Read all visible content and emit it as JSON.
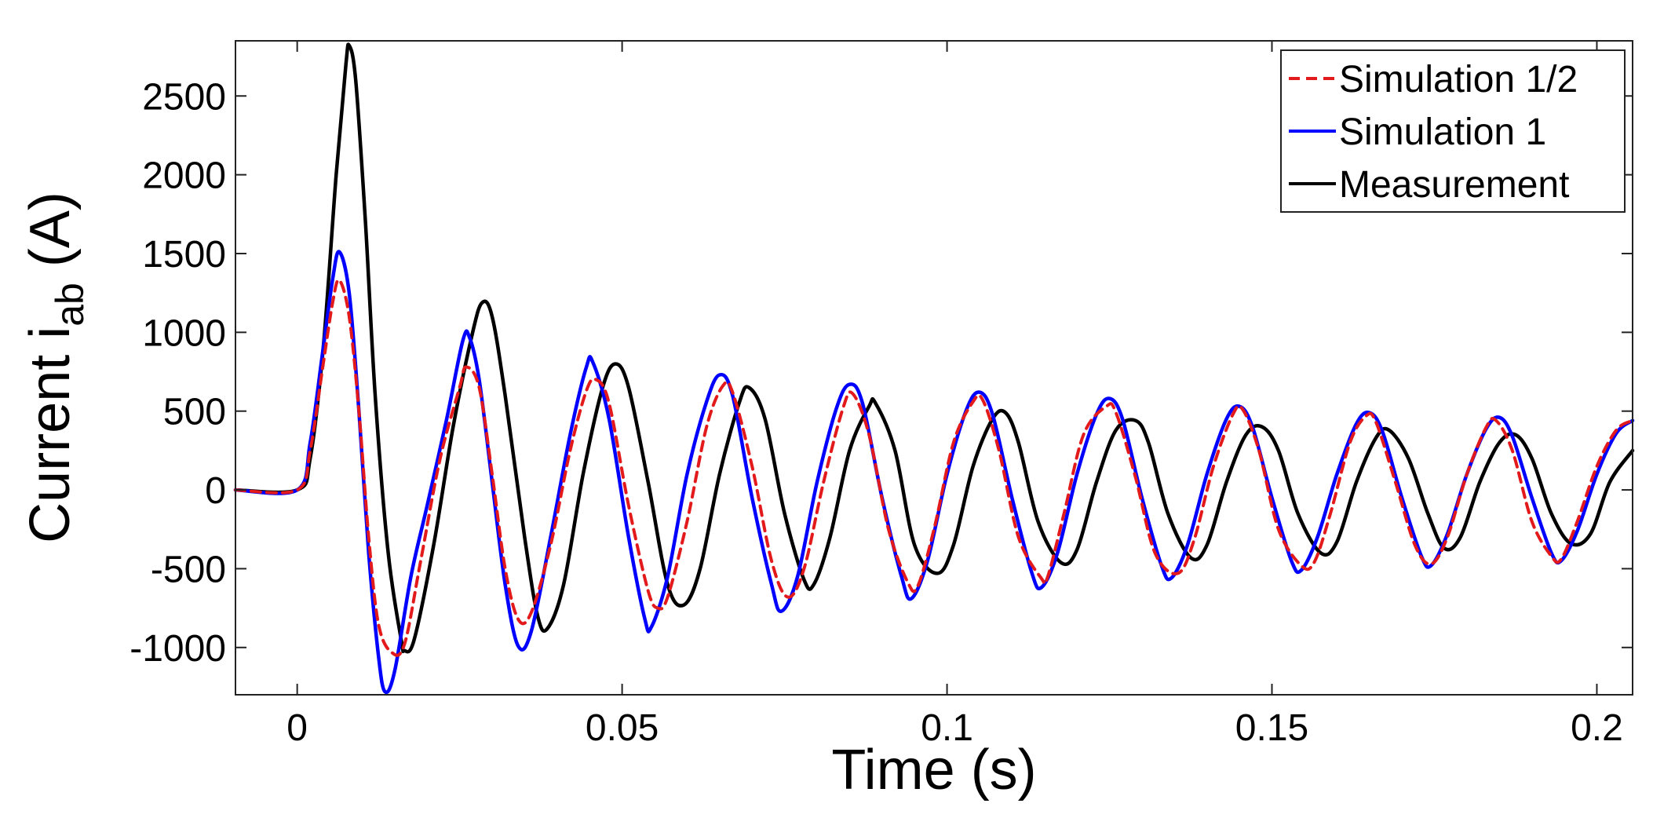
{
  "chart_data": {
    "type": "line",
    "xlabel": "Time (s)",
    "ylabel": {
      "prefix": "Current i",
      "subscript": "ab",
      "suffix": " (A)"
    },
    "xlim": [
      -0.0095,
      0.2055
    ],
    "ylim": [
      -1300,
      2850
    ],
    "x_ticks": [
      {
        "value": 0,
        "label": "0"
      },
      {
        "value": 0.05,
        "label": "0.05"
      },
      {
        "value": 0.1,
        "label": "0.1"
      },
      {
        "value": 0.15,
        "label": "0.15"
      },
      {
        "value": 0.2,
        "label": "0.2"
      }
    ],
    "y_ticks": [
      {
        "value": -1000,
        "label": "-1000"
      },
      {
        "value": -500,
        "label": "-500"
      },
      {
        "value": 0,
        "label": "0"
      },
      {
        "value": 500,
        "label": "500"
      },
      {
        "value": 1000,
        "label": "1000"
      },
      {
        "value": 1500,
        "label": "1500"
      },
      {
        "value": 2000,
        "label": "2000"
      },
      {
        "value": 2500,
        "label": "2500"
      }
    ],
    "grid": false,
    "legend_position": "top-right",
    "series": [
      {
        "name": "Simulation 1/2",
        "color": "#e31a1c",
        "style": "dashed",
        "points": [
          [
            -0.0095,
            0
          ],
          [
            0,
            0
          ],
          [
            0.002,
            250
          ],
          [
            0.004,
            800
          ],
          [
            0.0055,
            1200
          ],
          [
            0.0065,
            1330
          ],
          [
            0.008,
            1100
          ],
          [
            0.0095,
            500
          ],
          [
            0.011,
            -300
          ],
          [
            0.0125,
            -850
          ],
          [
            0.0145,
            -1030
          ],
          [
            0.0165,
            -980
          ],
          [
            0.019,
            -450
          ],
          [
            0.022,
            200
          ],
          [
            0.025,
            650
          ],
          [
            0.026,
            780
          ],
          [
            0.028,
            650
          ],
          [
            0.03,
            100
          ],
          [
            0.032,
            -500
          ],
          [
            0.034,
            -820
          ],
          [
            0.036,
            -780
          ],
          [
            0.039,
            -350
          ],
          [
            0.042,
            250
          ],
          [
            0.0445,
            630
          ],
          [
            0.046,
            700
          ],
          [
            0.048,
            550
          ],
          [
            0.051,
            -100
          ],
          [
            0.054,
            -640
          ],
          [
            0.0555,
            -750
          ],
          [
            0.057,
            -680
          ],
          [
            0.06,
            -200
          ],
          [
            0.063,
            400
          ],
          [
            0.0655,
            660
          ],
          [
            0.067,
            620
          ],
          [
            0.07,
            150
          ],
          [
            0.073,
            -450
          ],
          [
            0.0755,
            -680
          ],
          [
            0.078,
            -500
          ],
          [
            0.081,
            50
          ],
          [
            0.084,
            520
          ],
          [
            0.0855,
            610
          ],
          [
            0.088,
            350
          ],
          [
            0.091,
            -250
          ],
          [
            0.094,
            -590
          ],
          [
            0.0955,
            -610
          ],
          [
            0.098,
            -250
          ],
          [
            0.101,
            300
          ],
          [
            0.104,
            560
          ],
          [
            0.1055,
            570
          ],
          [
            0.108,
            250
          ],
          [
            0.111,
            -300
          ],
          [
            0.1145,
            -560
          ],
          [
            0.1155,
            -550
          ],
          [
            0.118,
            -150
          ],
          [
            0.121,
            350
          ],
          [
            0.1245,
            530
          ],
          [
            0.126,
            490
          ],
          [
            0.129,
            80
          ],
          [
            0.132,
            -400
          ],
          [
            0.1355,
            -530
          ],
          [
            0.138,
            -320
          ],
          [
            0.141,
            150
          ],
          [
            0.144,
            480
          ],
          [
            0.1455,
            510
          ],
          [
            0.148,
            250
          ],
          [
            0.151,
            -250
          ],
          [
            0.1545,
            -480
          ],
          [
            0.1565,
            -460
          ],
          [
            0.159,
            -150
          ],
          [
            0.162,
            300
          ],
          [
            0.1645,
            470
          ],
          [
            0.166,
            430
          ],
          [
            0.169,
            50
          ],
          [
            0.172,
            -350
          ],
          [
            0.1745,
            -470
          ],
          [
            0.177,
            -300
          ],
          [
            0.18,
            100
          ],
          [
            0.183,
            400
          ],
          [
            0.1845,
            440
          ],
          [
            0.187,
            250
          ],
          [
            0.19,
            -200
          ],
          [
            0.193,
            -420
          ],
          [
            0.1945,
            -440
          ],
          [
            0.197,
            -200
          ],
          [
            0.2,
            150
          ],
          [
            0.203,
            380
          ],
          [
            0.2055,
            440
          ]
        ]
      },
      {
        "name": "Simulation 1",
        "color": "#0000ff",
        "style": "solid",
        "points": [
          [
            -0.0095,
            0
          ],
          [
            0,
            0
          ],
          [
            0.002,
            300
          ],
          [
            0.004,
            900
          ],
          [
            0.0055,
            1350
          ],
          [
            0.0065,
            1510
          ],
          [
            0.008,
            1250
          ],
          [
            0.0095,
            500
          ],
          [
            0.011,
            -400
          ],
          [
            0.0125,
            -1050
          ],
          [
            0.0135,
            -1280
          ],
          [
            0.015,
            -1150
          ],
          [
            0.0175,
            -550
          ],
          [
            0.02,
            -100
          ],
          [
            0.023,
            450
          ],
          [
            0.0255,
            950
          ],
          [
            0.0265,
            970
          ],
          [
            0.028,
            700
          ],
          [
            0.03,
            50
          ],
          [
            0.032,
            -600
          ],
          [
            0.034,
            -990
          ],
          [
            0.036,
            -900
          ],
          [
            0.039,
            -300
          ],
          [
            0.042,
            350
          ],
          [
            0.0445,
            780
          ],
          [
            0.0455,
            810
          ],
          [
            0.048,
            450
          ],
          [
            0.051,
            -300
          ],
          [
            0.0535,
            -820
          ],
          [
            0.0545,
            -870
          ],
          [
            0.057,
            -550
          ],
          [
            0.06,
            100
          ],
          [
            0.063,
            560
          ],
          [
            0.065,
            730
          ],
          [
            0.067,
            600
          ],
          [
            0.07,
            -50
          ],
          [
            0.073,
            -600
          ],
          [
            0.0745,
            -770
          ],
          [
            0.077,
            -550
          ],
          [
            0.08,
            50
          ],
          [
            0.083,
            520
          ],
          [
            0.085,
            670
          ],
          [
            0.087,
            550
          ],
          [
            0.09,
            -50
          ],
          [
            0.093,
            -550
          ],
          [
            0.0945,
            -690
          ],
          [
            0.097,
            -450
          ],
          [
            0.1,
            100
          ],
          [
            0.103,
            510
          ],
          [
            0.105,
            620
          ],
          [
            0.107,
            480
          ],
          [
            0.11,
            -50
          ],
          [
            0.113,
            -520
          ],
          [
            0.1145,
            -620
          ],
          [
            0.117,
            -400
          ],
          [
            0.12,
            100
          ],
          [
            0.123,
            480
          ],
          [
            0.125,
            580
          ],
          [
            0.127,
            450
          ],
          [
            0.13,
            -50
          ],
          [
            0.133,
            -480
          ],
          [
            0.1345,
            -560
          ],
          [
            0.137,
            -350
          ],
          [
            0.14,
            100
          ],
          [
            0.143,
            450
          ],
          [
            0.145,
            530
          ],
          [
            0.147,
            400
          ],
          [
            0.15,
            -50
          ],
          [
            0.153,
            -450
          ],
          [
            0.1545,
            -510
          ],
          [
            0.157,
            -300
          ],
          [
            0.16,
            100
          ],
          [
            0.163,
            420
          ],
          [
            0.165,
            490
          ],
          [
            0.167,
            370
          ],
          [
            0.17,
            -50
          ],
          [
            0.173,
            -420
          ],
          [
            0.1745,
            -480
          ],
          [
            0.177,
            -280
          ],
          [
            0.18,
            100
          ],
          [
            0.183,
            390
          ],
          [
            0.185,
            460
          ],
          [
            0.187,
            340
          ],
          [
            0.19,
            -50
          ],
          [
            0.193,
            -400
          ],
          [
            0.1945,
            -450
          ],
          [
            0.197,
            -260
          ],
          [
            0.2,
            100
          ],
          [
            0.203,
            360
          ],
          [
            0.2055,
            440
          ]
        ]
      },
      {
        "name": "Measurement",
        "color": "#000000",
        "style": "solid",
        "points": [
          [
            -0.0095,
            0
          ],
          [
            0,
            0
          ],
          [
            0.002,
            200
          ],
          [
            0.004,
            900
          ],
          [
            0.006,
            2000
          ],
          [
            0.0075,
            2700
          ],
          [
            0.008,
            2820
          ],
          [
            0.009,
            2600
          ],
          [
            0.0105,
            1700
          ],
          [
            0.012,
            600
          ],
          [
            0.014,
            -400
          ],
          [
            0.016,
            -950
          ],
          [
            0.0165,
            -1020
          ],
          [
            0.018,
            -950
          ],
          [
            0.021,
            -350
          ],
          [
            0.024,
            400
          ],
          [
            0.027,
            1000
          ],
          [
            0.0285,
            1190
          ],
          [
            0.03,
            1100
          ],
          [
            0.032,
            600
          ],
          [
            0.035,
            -300
          ],
          [
            0.037,
            -800
          ],
          [
            0.0385,
            -880
          ],
          [
            0.041,
            -600
          ],
          [
            0.044,
            100
          ],
          [
            0.047,
            650
          ],
          [
            0.049,
            800
          ],
          [
            0.051,
            650
          ],
          [
            0.054,
            50
          ],
          [
            0.057,
            -600
          ],
          [
            0.0595,
            -730
          ],
          [
            0.062,
            -500
          ],
          [
            0.065,
            100
          ],
          [
            0.068,
            550
          ],
          [
            0.0695,
            650
          ],
          [
            0.072,
            450
          ],
          [
            0.075,
            -150
          ],
          [
            0.078,
            -570
          ],
          [
            0.0795,
            -600
          ],
          [
            0.082,
            -300
          ],
          [
            0.085,
            250
          ],
          [
            0.088,
            530
          ],
          [
            0.089,
            550
          ],
          [
            0.092,
            250
          ],
          [
            0.095,
            -350
          ],
          [
            0.0985,
            -530
          ],
          [
            0.101,
            -350
          ],
          [
            0.104,
            150
          ],
          [
            0.107,
            450
          ],
          [
            0.109,
            490
          ],
          [
            0.111,
            300
          ],
          [
            0.114,
            -200
          ],
          [
            0.1175,
            -460
          ],
          [
            0.12,
            -380
          ],
          [
            0.123,
            50
          ],
          [
            0.126,
            380
          ],
          [
            0.129,
            440
          ],
          [
            0.131,
            300
          ],
          [
            0.134,
            -150
          ],
          [
            0.1375,
            -430
          ],
          [
            0.14,
            -350
          ],
          [
            0.143,
            50
          ],
          [
            0.146,
            350
          ],
          [
            0.1485,
            400
          ],
          [
            0.151,
            250
          ],
          [
            0.154,
            -150
          ],
          [
            0.1575,
            -400
          ],
          [
            0.16,
            -330
          ],
          [
            0.163,
            50
          ],
          [
            0.166,
            330
          ],
          [
            0.168,
            380
          ],
          [
            0.171,
            200
          ],
          [
            0.174,
            -150
          ],
          [
            0.1765,
            -370
          ],
          [
            0.179,
            -300
          ],
          [
            0.182,
            50
          ],
          [
            0.185,
            300
          ],
          [
            0.1875,
            350
          ],
          [
            0.19,
            200
          ],
          [
            0.193,
            -150
          ],
          [
            0.196,
            -340
          ],
          [
            0.199,
            -280
          ],
          [
            0.202,
            50
          ],
          [
            0.2055,
            250
          ]
        ]
      }
    ]
  }
}
